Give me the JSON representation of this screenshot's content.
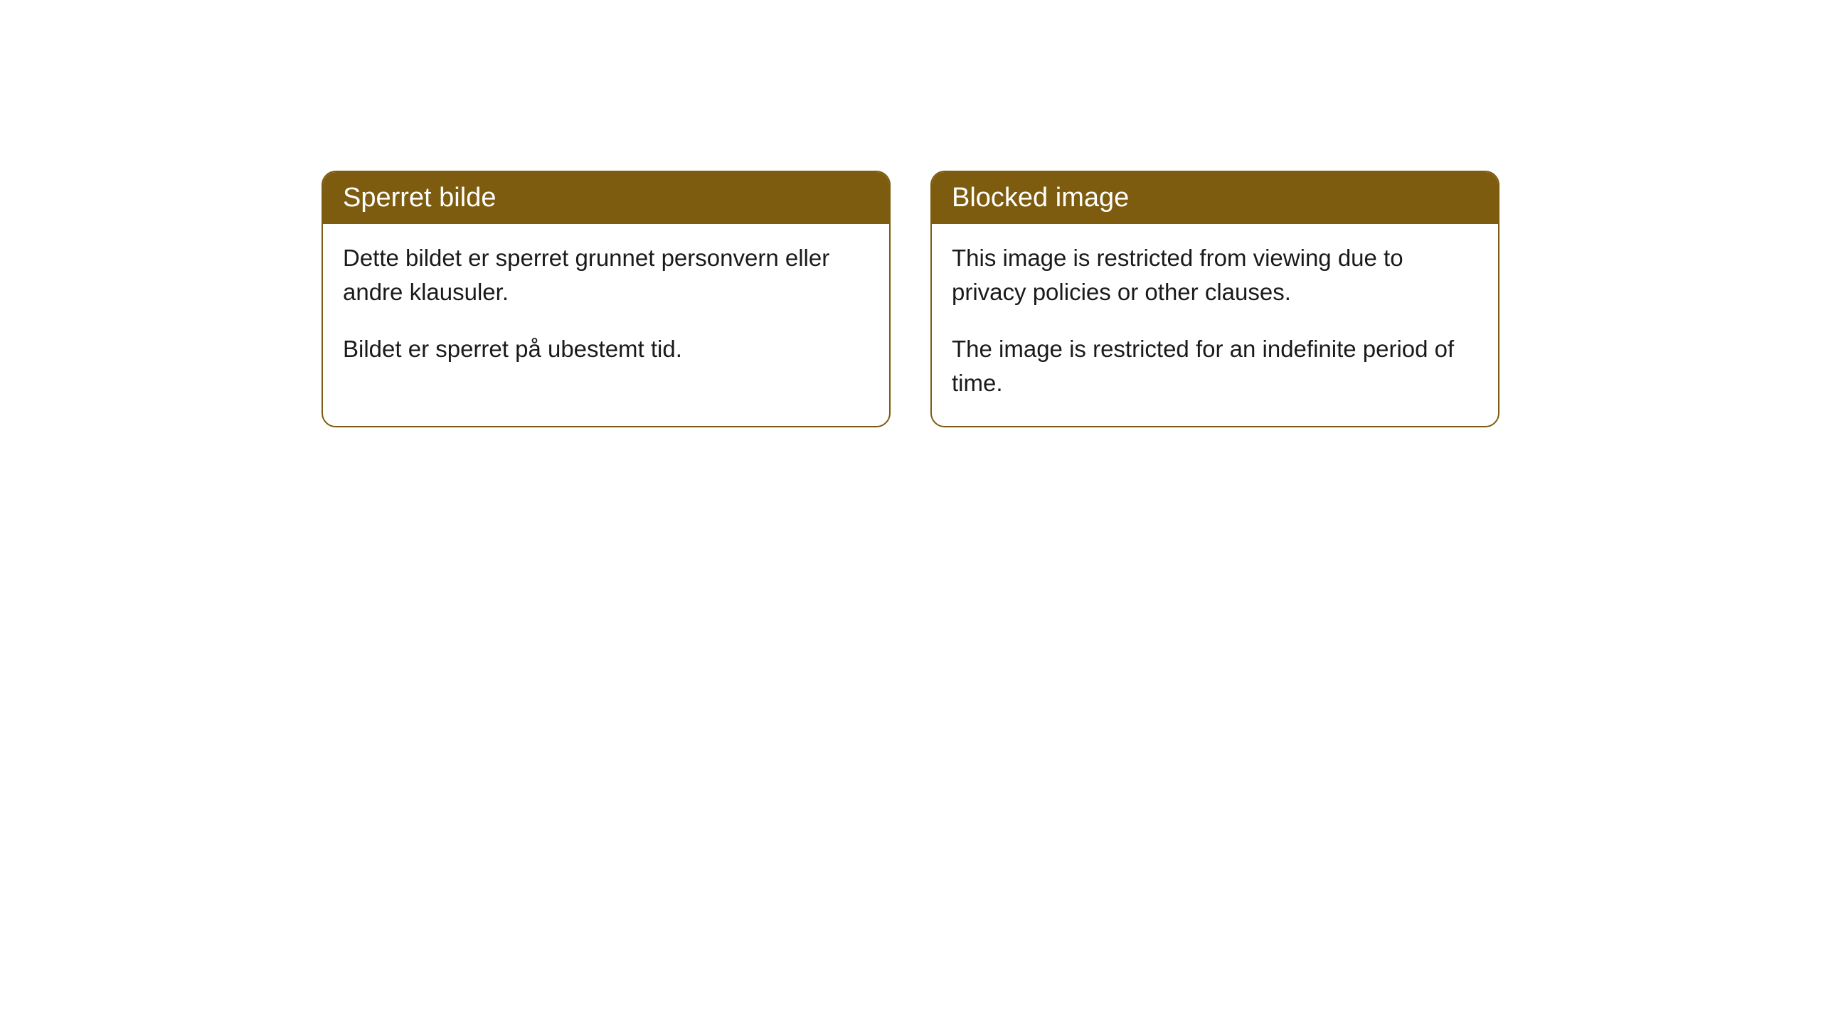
{
  "notices": {
    "left": {
      "title": "Sperret bilde",
      "paragraph1": "Dette bildet er sperret grunnet personvern eller andre klausuler.",
      "paragraph2": "Bildet er sperret på ubestemt tid."
    },
    "right": {
      "title": "Blocked image",
      "paragraph1": "This image is restricted from viewing due to privacy policies or other clauses.",
      "paragraph2": "The image is restricted for an indefinite period of time."
    }
  },
  "colors": {
    "accent": "#7d5c0f",
    "background": "#ffffff",
    "text": "#1a1a1a",
    "header_text": "#ffffff"
  }
}
